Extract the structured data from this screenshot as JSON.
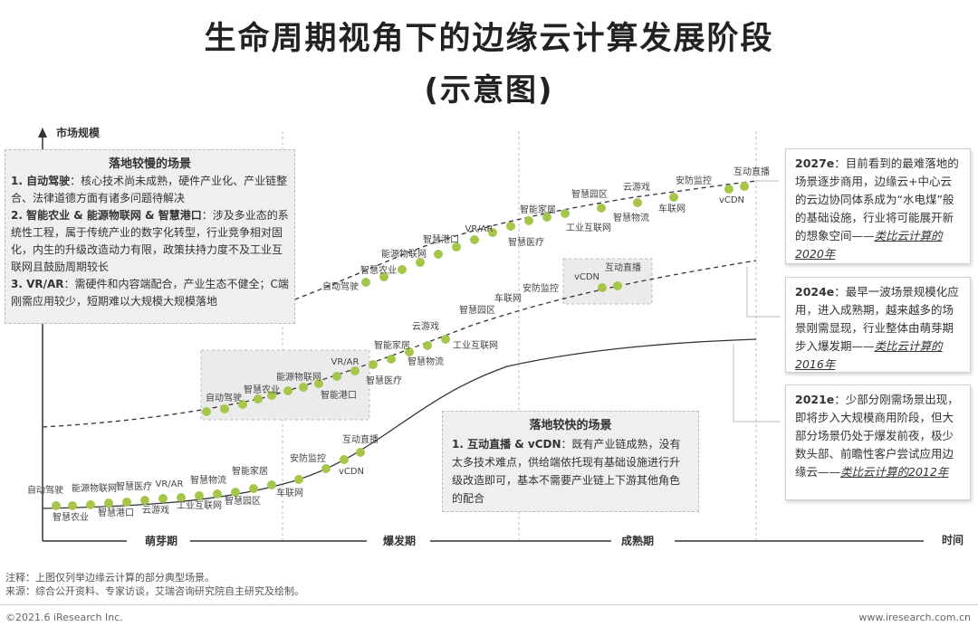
{
  "title": "生命周期视角下的边缘云计算发展阶段",
  "subtitle": "(示意图)",
  "axes": {
    "y_label": "市场规模",
    "x_label": "时间"
  },
  "phases": [
    "萌芽期",
    "爆发期",
    "成熟期"
  ],
  "curves": [
    {
      "year": "2012e",
      "labels": [
        "自动驾驶",
        "智慧农业",
        "能源物联网",
        "智慧港口",
        "智慧医疗",
        "云游戏",
        "VR/AR",
        "工业互联网",
        "智慧物流",
        "智慧园区",
        "智能家居",
        "车联网",
        "安防监控",
        "vCDN",
        "互动直播"
      ]
    },
    {
      "year": "2016e",
      "labels": [
        "自动驾驶",
        "智慧农业",
        "能源物联网",
        "智能港口",
        "VR/AR",
        "智慧医疗",
        "智能家居",
        "智慧物流",
        "云游戏",
        "工业互联网",
        "智慧园区",
        "车联网",
        "安防监控",
        "vCDN",
        "互动直播"
      ]
    },
    {
      "year": "2020e",
      "labels": [
        "自动驾驶",
        "智慧农业",
        "能源物联网",
        "智慧港口",
        "VR/AR",
        "智慧医疗",
        "智能家居",
        "工业互联网",
        "智慧园区",
        "智慧物流",
        "云游戏",
        "车联网",
        "安防监控",
        "vCDN",
        "互动直播"
      ]
    }
  ],
  "slow_box": {
    "heading": "落地较慢的场景",
    "items": [
      {
        "key": "1. 自动驾驶",
        "text": "：核心技术尚未成熟，硬件产业化、产业链整合、法律道德方面有诸多问题待解决"
      },
      {
        "key": "2. 智能农业 & 能源物联网 & 智慧港口",
        "text": "：涉及多业态的系统性工程，属于传统产业的数字化转型，行业竞争相对固化，内生的升级改造动力有限，政策扶持力度不及工业互联网且鼓励周期较长"
      },
      {
        "key": "3. VR/AR",
        "text": "：需硬件和内容端配合，产业生态不健全；C端刚需应用较少，短期难以大规模大规模落地"
      }
    ]
  },
  "fast_box": {
    "heading": "落地较快的场景",
    "key": "1. 互动直播 & vCDN",
    "text": "：既有产业链成熟，没有太多技术难点，供给端依托现有基础设施进行升级改造即可，基本不需要产业链上下游其他角色的配合"
  },
  "side_notes": [
    {
      "year": "2027e",
      "text": "：目前看到的最难落地的场景逐步商用，边缘云+中心云的云边协同体系成为“水电煤”般的基础设施，行业将可能展开新的想象空间——",
      "tail": "类比云计算的2020年"
    },
    {
      "year": "2024e",
      "text": "：最早一波场景规模化应用，进入成熟期，越来越多的场景刚需显现，行业整体由萌芽期步入爆发期——",
      "tail": "类比云计算的2016年"
    },
    {
      "year": "2021e",
      "text": "：少部分刚需场景出现，即将步入大规模商用阶段，但大部分场景仍处于爆发前夜，极少数头部、前瞻性客户尝试应用边缘云——",
      "tail": "类比云计算的2012年"
    }
  ],
  "notes": {
    "note": "注释：上图仅列举边缘云计算的部分典型场景。",
    "source": "来源：综合公开资料、专家访谈，艾瑞咨询研究院自主研究及绘制。"
  },
  "footer": {
    "left": "©2021.6 iResearch Inc.",
    "right": "www.iresearch.com.cn"
  },
  "colors": {
    "dot": "#a6c64a",
    "line": "#333333",
    "box": "#efefef"
  }
}
